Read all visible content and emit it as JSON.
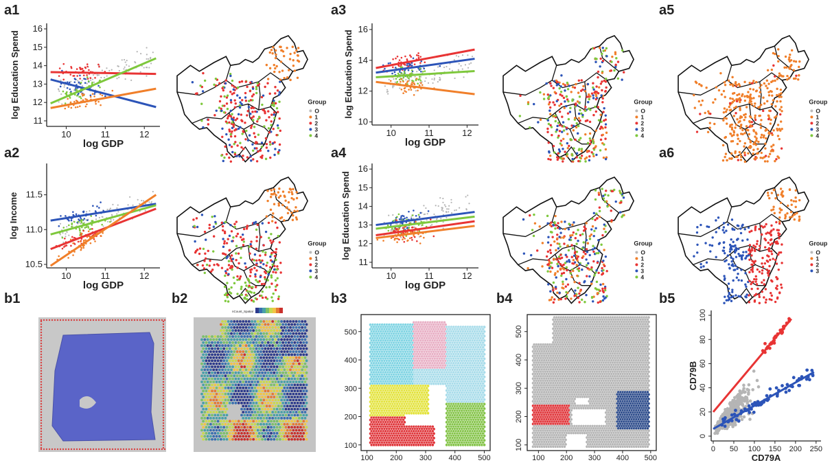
{
  "panel_labels": {
    "a1": "a1",
    "a2": "a2",
    "a3": "a3",
    "a4": "a4",
    "a5": "a5",
    "a6": "a6",
    "b1": "b1",
    "b2": "b2",
    "b3": "b3",
    "b4": "b4",
    "b5": "b5"
  },
  "colors": {
    "group0": "#f07f2a",
    "group1": "#e83434",
    "group2": "#2c54b8",
    "group3": "#7ec83c",
    "gray": "#b5b5b5",
    "cyan": "#7ed4e3",
    "pink": "#e8aec4",
    "lightblue": "#a7dcea",
    "yellow": "#e3e33a",
    "red": "#e0353a",
    "green": "#84c448",
    "navy": "#2b4a8a",
    "tissue_blue": "#5a64c8"
  },
  "legend_title": "Group",
  "b2_colorbar_label": "nCount_Spatial",
  "chart_data": [
    {
      "id": "a1",
      "type": "scatter",
      "xlabel": "log GDP",
      "ylabel": "log Education Spend",
      "xticks": [
        10,
        11,
        12
      ],
      "yticks": [
        11,
        12,
        13,
        14,
        15,
        16
      ],
      "xlim": [
        9.5,
        12.4
      ],
      "ylim": [
        10.7,
        16.3
      ],
      "series": [
        {
          "color": "#e83434",
          "line": [
            [
              9.6,
              13.65
            ],
            [
              12.3,
              13.55
            ]
          ]
        },
        {
          "color": "#2c54b8",
          "line": [
            [
              9.6,
              13.25
            ],
            [
              12.3,
              11.75
            ]
          ]
        },
        {
          "color": "#7ec83c",
          "line": [
            [
              9.6,
              11.95
            ],
            [
              12.3,
              14.4
            ]
          ]
        },
        {
          "color": "#f07f2a",
          "line": [
            [
              9.6,
              11.7
            ],
            [
              12.3,
              12.75
            ]
          ]
        }
      ]
    },
    {
      "id": "a2",
      "type": "scatter",
      "xlabel": "log GDP",
      "ylabel": "log Income",
      "xticks": [
        10,
        11,
        12
      ],
      "yticks": [
        10.5,
        11.0,
        11.5
      ],
      "xlim": [
        9.5,
        12.4
      ],
      "ylim": [
        10.45,
        11.95
      ],
      "series": [
        {
          "color": "#2c54b8",
          "line": [
            [
              9.6,
              11.13
            ],
            [
              12.3,
              11.37
            ]
          ]
        },
        {
          "color": "#7ec83c",
          "line": [
            [
              9.6,
              10.93
            ],
            [
              12.3,
              11.35
            ]
          ]
        },
        {
          "color": "#e83434",
          "line": [
            [
              9.6,
              10.72
            ],
            [
              12.3,
              11.3
            ]
          ]
        },
        {
          "color": "#f07f2a",
          "line": [
            [
              9.6,
              10.48
            ],
            [
              12.3,
              11.5
            ]
          ]
        }
      ]
    },
    {
      "id": "a3",
      "type": "scatter",
      "xlabel": "log GDP",
      "ylabel": "log Education Spend",
      "xticks": [
        10,
        11,
        12
      ],
      "yticks": [
        10,
        12,
        14,
        16
      ],
      "xlim": [
        9.5,
        12.3
      ],
      "ylim": [
        9.8,
        16.4
      ],
      "series": [
        {
          "color": "#e83434",
          "line": [
            [
              9.6,
              13.5
            ],
            [
              12.2,
              14.7
            ]
          ]
        },
        {
          "color": "#2c54b8",
          "line": [
            [
              9.6,
              13.2
            ],
            [
              12.2,
              14.1
            ]
          ]
        },
        {
          "color": "#7ec83c",
          "line": [
            [
              9.6,
              12.9
            ],
            [
              12.2,
              13.3
            ]
          ]
        },
        {
          "color": "#f07f2a",
          "line": [
            [
              9.6,
              12.6
            ],
            [
              12.2,
              11.8
            ]
          ]
        }
      ]
    },
    {
      "id": "a4",
      "type": "scatter",
      "xlabel": "log GDP",
      "ylabel": "log Education Spend",
      "xticks": [
        10,
        11,
        12
      ],
      "yticks": [
        11,
        12,
        13,
        14,
        15,
        16
      ],
      "xlim": [
        9.5,
        12.3
      ],
      "ylim": [
        10.7,
        16.3
      ],
      "series": [
        {
          "color": "#2c54b8",
          "line": [
            [
              9.6,
              13.0
            ],
            [
              12.2,
              13.7
            ]
          ]
        },
        {
          "color": "#7ec83c",
          "line": [
            [
              9.6,
              12.8
            ],
            [
              12.2,
              13.45
            ]
          ]
        },
        {
          "color": "#e83434",
          "line": [
            [
              9.6,
              12.45
            ],
            [
              12.2,
              13.2
            ]
          ]
        },
        {
          "color": "#f07f2a",
          "line": [
            [
              9.6,
              12.3
            ],
            [
              12.2,
              12.95
            ]
          ]
        }
      ]
    },
    {
      "id": "b3",
      "type": "scatter",
      "xticks": [
        100,
        200,
        300,
        400,
        500
      ],
      "yticks": [
        100,
        200,
        300,
        400,
        500
      ],
      "xlim": [
        80,
        520
      ],
      "ylim": [
        80,
        560
      ]
    },
    {
      "id": "b4",
      "type": "scatter",
      "xticks": [
        100,
        200,
        300,
        400,
        500
      ],
      "yticks": [
        100,
        200,
        300,
        400,
        500
      ],
      "xlim": [
        60,
        520
      ],
      "ylim": [
        80,
        560
      ]
    },
    {
      "id": "b5",
      "type": "scatter",
      "xlabel": "CD79A",
      "ylabel": "CD79B",
      "xticks": [
        0,
        50,
        100,
        150,
        200,
        250
      ],
      "yticks": [
        0,
        20,
        40,
        60,
        80,
        100
      ],
      "xlim": [
        -5,
        262
      ],
      "ylim": [
        -4,
        104
      ],
      "series": [
        {
          "color": "#e83434",
          "line": [
            [
              0,
              20
            ],
            [
              190,
              97
            ]
          ]
        },
        {
          "color": "#2c54b8",
          "line": [
            [
              0,
              6
            ],
            [
              245,
              53
            ]
          ]
        }
      ]
    }
  ],
  "legends": {
    "a1": [
      "O",
      "1",
      "2",
      "3",
      "4"
    ],
    "a2": [
      "O",
      "1",
      "2",
      "3",
      "4"
    ],
    "a3": [
      "O",
      "1",
      "2",
      "3",
      "4"
    ],
    "a4": [
      "O",
      "1",
      "2",
      "3",
      "4"
    ],
    "a5": [
      "O",
      "1",
      "2",
      "3",
      "4"
    ],
    "a6": [
      "O",
      "1",
      "2",
      "3"
    ]
  }
}
